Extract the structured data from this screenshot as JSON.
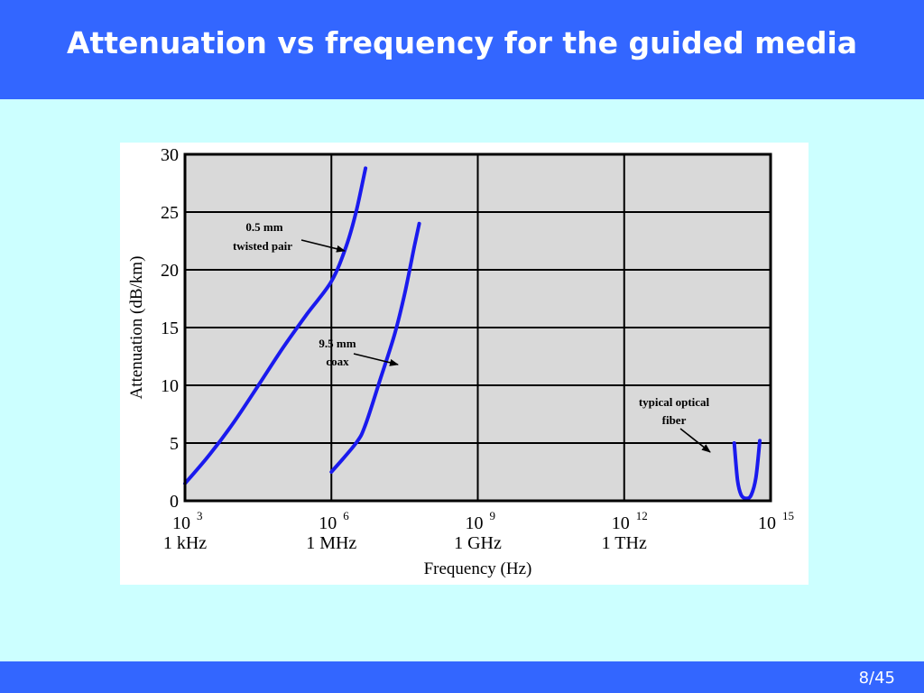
{
  "slide": {
    "title": "Attenuation vs frequency for the guided media",
    "page": "8/45"
  },
  "colors": {
    "header": "#3366ff",
    "background": "#ccffff",
    "plot_area": "#d9d9d9",
    "curve": "#1a1aee"
  },
  "chart_data": {
    "type": "line",
    "title": "",
    "xlabel": "Frequency (Hz)",
    "ylabel": "Attenuation (dB/km)",
    "x_scale": "log",
    "xlim": [
      1000,
      1000000000000000
    ],
    "ylim": [
      0,
      30
    ],
    "grid": true,
    "x_ticks": [
      {
        "value": 1000,
        "base": "10",
        "exp": "3",
        "label": "1 kHz"
      },
      {
        "value": 1000000,
        "base": "10",
        "exp": "6",
        "label": "1 MHz"
      },
      {
        "value": 1000000000,
        "base": "10",
        "exp": "9",
        "label": "1 GHz"
      },
      {
        "value": 1000000000000,
        "base": "10",
        "exp": "12",
        "label": "1 THz"
      },
      {
        "value": 1000000000000000,
        "base": "10",
        "exp": "15",
        "label": ""
      }
    ],
    "y_ticks": [
      "0",
      "5",
      "10",
      "15",
      "20",
      "25",
      "30"
    ],
    "series": [
      {
        "id": "twisted-pair",
        "x": [
          1000,
          3200,
          10000,
          32000,
          100000,
          320000,
          1000000,
          2000000,
          3200000,
          5000000
        ],
        "y": [
          1.5,
          4.0,
          6.8,
          10.0,
          13.2,
          16.2,
          19.0,
          22.0,
          25.0,
          28.8
        ]
      },
      {
        "id": "coax",
        "x": [
          1000000,
          3200000,
          5000000,
          10000000,
          20000000,
          32000000,
          50000000,
          63000000
        ],
        "y": [
          2.5,
          5.0,
          6.6,
          10.5,
          14.5,
          18.0,
          22.0,
          24.0
        ]
      },
      {
        "id": "optical-fiber",
        "x": [
          180000000000000,
          210000000000000,
          250000000000000,
          320000000000000,
          400000000000000,
          500000000000000,
          600000000000000
        ],
        "y": [
          5.0,
          1.8,
          0.5,
          0.2,
          0.5,
          2.0,
          5.2
        ]
      }
    ],
    "annotations": [
      {
        "lines": [
          "0.5 mm",
          "twisted pair"
        ],
        "target": "twisted-pair"
      },
      {
        "lines": [
          "9.5 mm",
          "coax"
        ],
        "target": "coax"
      },
      {
        "lines": [
          "typical optical",
          "fiber"
        ],
        "target": "optical-fiber"
      }
    ]
  }
}
